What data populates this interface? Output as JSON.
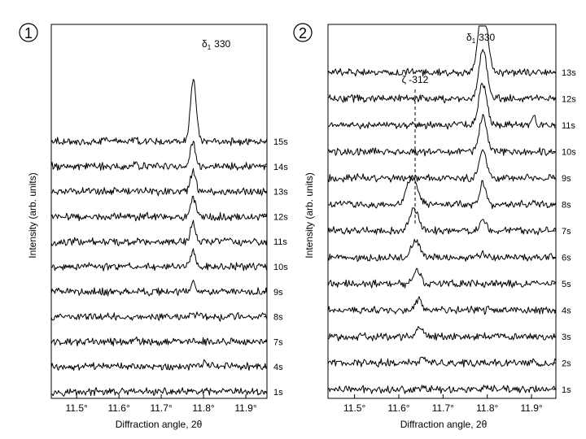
{
  "chart_data": [
    {
      "type": "line",
      "panel_label": "①",
      "xlabel": "Diffraction angle, 2θ",
      "ylabel": "Intensity (arb. units)",
      "xlim": [
        11.44,
        11.95
      ],
      "x_ticks": [
        "11.5°",
        "11.6°",
        "11.7°",
        "11.8°",
        "11.9°"
      ],
      "x_tick_values": [
        11.5,
        11.6,
        11.7,
        11.8,
        11.9
      ],
      "peak_label": {
        "symbol": "δ",
        "subscript": "1",
        "text": "330"
      },
      "series": [
        {
          "name": "1s",
          "features": []
        },
        {
          "name": "4s",
          "features": [
            {
              "x": 11.805,
              "height": 0.35,
              "width": 0.004
            }
          ]
        },
        {
          "name": "7s",
          "features": [
            {
              "x": 11.64,
              "height": 0.15,
              "width": 0.004
            }
          ]
        },
        {
          "name": "8s",
          "features": [
            {
              "x": 11.775,
              "height": 0.15,
              "width": 0.005
            }
          ]
        },
        {
          "name": "9s",
          "features": [
            {
              "x": 11.775,
              "height": 0.6,
              "width": 0.005
            }
          ]
        },
        {
          "name": "10s",
          "features": [
            {
              "x": 11.775,
              "height": 0.95,
              "width": 0.006
            }
          ]
        },
        {
          "name": "11s",
          "features": [
            {
              "x": 11.775,
              "height": 1.1,
              "width": 0.006
            }
          ]
        },
        {
          "name": "12s",
          "features": [
            {
              "x": 11.775,
              "height": 1.2,
              "width": 0.006
            }
          ]
        },
        {
          "name": "13s",
          "features": [
            {
              "x": 11.775,
              "height": 1.3,
              "width": 0.006
            }
          ]
        },
        {
          "name": "14s",
          "features": [
            {
              "x": 11.775,
              "height": 1.4,
              "width": 0.006
            },
            {
              "x": 11.64,
              "height": 0.25,
              "width": 0.004
            }
          ]
        },
        {
          "name": "15s",
          "features": [
            {
              "x": 11.776,
              "height": 3.8,
              "width": 0.007
            },
            {
              "x": 11.64,
              "height": 0.2,
              "width": 0.004
            }
          ]
        }
      ]
    },
    {
      "type": "line",
      "panel_label": "②",
      "xlabel": "Diffraction angle, 2θ",
      "ylabel": "Intensity (arb. units)",
      "xlim": [
        11.44,
        11.955
      ],
      "x_ticks": [
        "11.5°",
        "11.6°",
        "11.7°",
        "11.8°",
        "11.9°"
      ],
      "x_tick_values": [
        11.5,
        11.6,
        11.7,
        11.8,
        11.9
      ],
      "peak_label": {
        "symbol": "δ",
        "subscript": "1",
        "text": "330"
      },
      "secondary_label": {
        "text": "ζ -312",
        "x": 11.625
      },
      "series": [
        {
          "name": "1s",
          "features": [
            {
              "x": 11.655,
              "height": 0.25,
              "width": 0.005
            }
          ]
        },
        {
          "name": "2s",
          "features": [
            {
              "x": 11.655,
              "height": 0.4,
              "width": 0.006
            }
          ]
        },
        {
          "name": "3s",
          "features": [
            {
              "x": 11.648,
              "height": 0.6,
              "width": 0.007
            }
          ]
        },
        {
          "name": "4s",
          "features": [
            {
              "x": 11.645,
              "height": 0.7,
              "width": 0.007
            }
          ]
        },
        {
          "name": "5s",
          "features": [
            {
              "x": 11.64,
              "height": 0.85,
              "width": 0.008
            }
          ]
        },
        {
          "name": "6s",
          "features": [
            {
              "x": 11.638,
              "height": 1.1,
              "width": 0.009
            },
            {
              "x": 11.79,
              "height": 0.2,
              "width": 0.006
            }
          ]
        },
        {
          "name": "7s",
          "features": [
            {
              "x": 11.635,
              "height": 1.4,
              "width": 0.01
            },
            {
              "x": 11.79,
              "height": 0.7,
              "width": 0.007
            }
          ]
        },
        {
          "name": "8s",
          "features": [
            {
              "x": 11.63,
              "height": 1.6,
              "width": 0.012
            },
            {
              "x": 11.79,
              "height": 1.3,
              "width": 0.007
            }
          ]
        },
        {
          "name": "9s",
          "features": [
            {
              "x": 11.79,
              "height": 1.8,
              "width": 0.008
            }
          ]
        },
        {
          "name": "10s",
          "features": [
            {
              "x": 11.79,
              "height": 2.2,
              "width": 0.008
            }
          ]
        },
        {
          "name": "11s",
          "features": [
            {
              "x": 11.79,
              "height": 2.6,
              "width": 0.009
            },
            {
              "x": 11.905,
              "height": 0.5,
              "width": 0.004
            }
          ]
        },
        {
          "name": "12s",
          "features": [
            {
              "x": 11.79,
              "height": 3.0,
              "width": 0.009
            }
          ]
        },
        {
          "name": "13s",
          "features": [
            {
              "x": 11.79,
              "height": 4.2,
              "width": 0.01
            }
          ]
        }
      ]
    }
  ]
}
